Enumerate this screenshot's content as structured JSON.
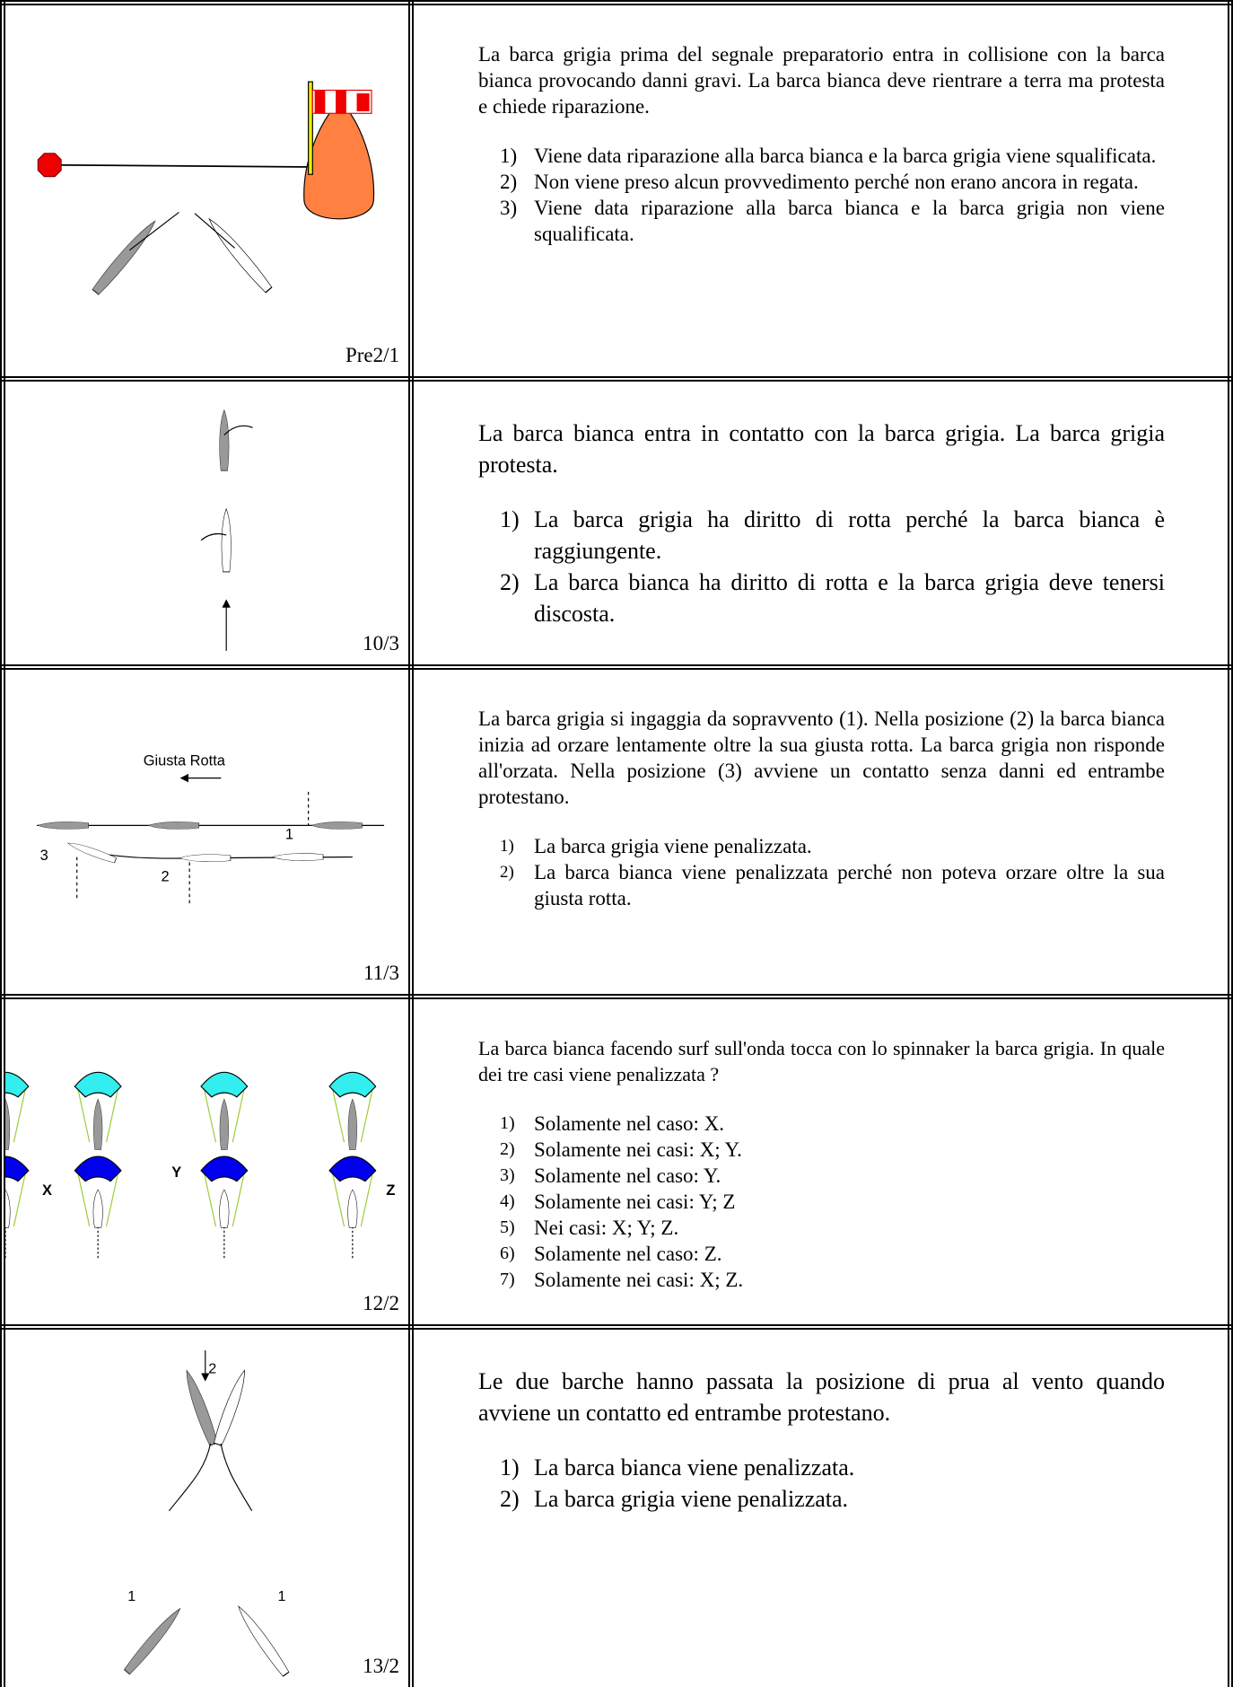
{
  "rows": [
    {
      "code": "Pre2/1",
      "question": "La barca grigia prima del segnale preparatorio entra in collisione con la barca bianca provocando danni gravi. La barca bianca deve rientrare a terra ma protesta e chiede riparazione.",
      "options": [
        {
          "number": "1)",
          "text": "Viene data riparazione alla barca bianca e la barca grigia viene squalificata."
        },
        {
          "number": "2)",
          "text": "Non viene preso alcun provvedimento perché non erano ancora in regata."
        },
        {
          "number": "3)",
          "text": "Viene data riparazione alla barca bianca e la barca grigia non viene squalificata."
        }
      ]
    },
    {
      "code": "10/3",
      "question": "La barca bianca entra in contatto con la barca grigia. La barca grigia protesta.",
      "options": [
        {
          "number": "1)",
          "text": "La barca grigia ha diritto di rotta perché la barca bianca è raggiungente."
        },
        {
          "number": "2)",
          "text": "La barca bianca ha diritto di rotta e la barca grigia deve tenersi discosta."
        }
      ]
    },
    {
      "code": "11/3",
      "labels": [
        "Giusta Rotta",
        "1",
        "2",
        "3"
      ],
      "question": "La barca grigia si ingaggia da sopravvento (1). Nella posizione (2) la barca bianca inizia ad orzare lentamente oltre la sua giusta rotta. La barca grigia non risponde all'orzata. Nella posizione (3) avviene un contatto senza danni ed entrambe protestano.",
      "options": [
        {
          "number": "1)",
          "text": "La barca grigia viene penalizzata."
        },
        {
          "number": "2)",
          "text": "La barca bianca viene penalizzata perché non poteva orzare oltre la sua giusta rotta."
        }
      ]
    },
    {
      "code": "12/2",
      "labels": [
        "X",
        "Y",
        "Z"
      ],
      "question": "La barca bianca facendo surf sull'onda tocca con lo spinnaker la barca grigia. In quale dei tre casi viene penalizzata ?",
      "options": [
        {
          "number": "1)",
          "text": "Solamente nel caso: X."
        },
        {
          "number": "2)",
          "text": "Solamente nei casi: X; Y."
        },
        {
          "number": "3)",
          "text": "Solamente nel caso: Y."
        },
        {
          "number": "4)",
          "text": "Solamente nei casi: Y; Z"
        },
        {
          "number": "5)",
          "text": "Nei casi: X; Y; Z."
        },
        {
          "number": "6)",
          "text": "Solamente nel caso: Z."
        },
        {
          "number": "7)",
          "text": "Solamente nei casi: X; Z."
        }
      ]
    },
    {
      "code": "13/2",
      "labels": [
        "2",
        "1",
        "1"
      ],
      "question": "Le due barche hanno passata la posizione di prua al vento quando avviene un contatto ed entrambe protestano.",
      "options": [
        {
          "number": "1)",
          "text": "La barca bianca viene penalizzata."
        },
        {
          "number": "2)",
          "text": "La barca grigia viene penalizzata."
        }
      ]
    }
  ]
}
